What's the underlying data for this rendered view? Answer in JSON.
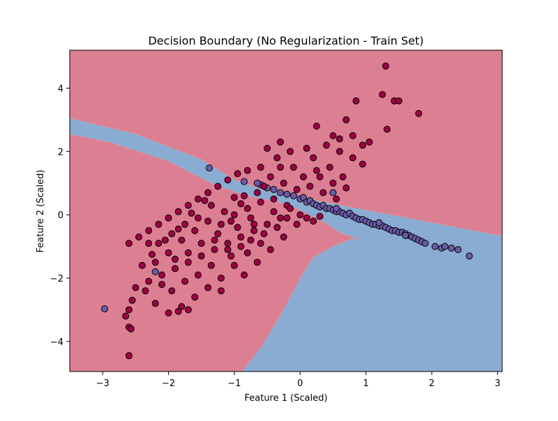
{
  "chart_data": {
    "type": "scatter",
    "title": "Decision Boundary (No Regularization - Train Set)",
    "xlabel": "Feature 1 (Scaled)",
    "ylabel": "Feature 2 (Scaled)",
    "xlim": [
      -3.5,
      3.07
    ],
    "ylim": [
      -4.95,
      5.2
    ],
    "xticks": [
      -3,
      -2,
      -1,
      0,
      1,
      2,
      3
    ],
    "yticks": [
      -4,
      -2,
      0,
      2,
      4
    ],
    "xtick_labels": [
      "−3",
      "−2",
      "−1",
      "0",
      "1",
      "2",
      "3"
    ],
    "ytick_labels": [
      "−4",
      "−2",
      "0",
      "2",
      "4"
    ],
    "grid": false,
    "legend": "none",
    "colors": {
      "region_class0": "#dc7f92",
      "region_class1": "#8aabd2",
      "point_class0": "#9e0142",
      "point_class1": "#6a5ba8",
      "point_edge": "#000000"
    },
    "boundary_class1_region": [
      [
        -3.5,
        3.05
      ],
      [
        -2.5,
        2.55
      ],
      [
        -1.5,
        1.75
      ],
      [
        -1.0,
        1.1
      ],
      [
        -0.5,
        0.75
      ],
      [
        0.0,
        0.55
      ],
      [
        0.5,
        0.35
      ],
      [
        1.0,
        0.15
      ],
      [
        1.5,
        -0.05
      ],
      [
        2.0,
        -0.25
      ],
      [
        2.5,
        -0.45
      ],
      [
        3.07,
        -0.67
      ],
      [
        3.07,
        -4.95
      ],
      [
        -0.88,
        -4.95
      ],
      [
        -0.6,
        -4.2
      ],
      [
        -0.3,
        -3.2
      ],
      [
        0.0,
        -2.0
      ],
      [
        0.2,
        -1.35
      ],
      [
        0.5,
        -1.0
      ],
      [
        0.8,
        -0.75
      ],
      [
        0.95,
        -0.8
      ],
      [
        0.6,
        -0.55
      ],
      [
        0.3,
        -0.15
      ],
      [
        0.0,
        0.15
      ],
      [
        -0.3,
        0.4
      ],
      [
        -0.8,
        0.6
      ],
      [
        -1.3,
        0.95
      ],
      [
        -2.0,
        1.7
      ],
      [
        -2.9,
        2.3
      ],
      [
        -3.5,
        2.55
      ]
    ],
    "series": [
      {
        "class": 1,
        "points": [
          [
            -2.97,
            -2.97
          ],
          [
            -1.38,
            1.48
          ],
          [
            -0.6,
            0.95
          ],
          [
            -0.5,
            0.85
          ],
          [
            -0.4,
            0.8
          ],
          [
            -0.3,
            0.7
          ],
          [
            -0.2,
            0.65
          ],
          [
            -0.1,
            0.6
          ],
          [
            0.0,
            0.5
          ],
          [
            0.05,
            0.55
          ],
          [
            0.1,
            0.4
          ],
          [
            0.15,
            0.45
          ],
          [
            0.2,
            0.35
          ],
          [
            0.25,
            0.3
          ],
          [
            0.3,
            0.25
          ],
          [
            0.35,
            0.3
          ],
          [
            0.4,
            0.2
          ],
          [
            0.45,
            0.2
          ],
          [
            0.5,
            0.15
          ],
          [
            0.55,
            0.1
          ],
          [
            0.6,
            0.1
          ],
          [
            0.65,
            0.05
          ],
          [
            0.7,
            0.0
          ],
          [
            0.75,
            0.05
          ],
          [
            0.8,
            -0.05
          ],
          [
            0.85,
            -0.1
          ],
          [
            0.9,
            -0.15
          ],
          [
            0.95,
            -0.15
          ],
          [
            1.0,
            -0.2
          ],
          [
            1.05,
            -0.25
          ],
          [
            1.1,
            -0.3
          ],
          [
            1.15,
            -0.3
          ],
          [
            1.2,
            -0.35
          ],
          [
            1.25,
            -0.35
          ],
          [
            1.3,
            -0.4
          ],
          [
            1.35,
            -0.45
          ],
          [
            1.4,
            -0.5
          ],
          [
            1.45,
            -0.5
          ],
          [
            1.5,
            -0.55
          ],
          [
            1.55,
            -0.55
          ],
          [
            1.6,
            -0.6
          ],
          [
            1.65,
            -0.65
          ],
          [
            1.7,
            -0.7
          ],
          [
            1.75,
            -0.75
          ],
          [
            1.8,
            -0.8
          ],
          [
            1.85,
            -0.85
          ],
          [
            1.9,
            -0.9
          ],
          [
            2.15,
            -1.05
          ],
          [
            2.2,
            -1.0
          ],
          [
            2.3,
            -1.05
          ],
          [
            2.4,
            -1.1
          ],
          [
            2.57,
            -1.3
          ],
          [
            0.5,
            0.7
          ],
          [
            -0.85,
            1.05
          ],
          [
            -2.2,
            -1.8
          ],
          [
            -0.65,
            1.0
          ],
          [
            0.55,
            0.2
          ],
          [
            1.2,
            -0.25
          ],
          [
            1.6,
            -0.65
          ],
          [
            2.05,
            -1.0
          ]
        ]
      },
      {
        "class": 0,
        "points": [
          [
            1.3,
            4.7
          ],
          [
            0.85,
            3.6
          ],
          [
            1.25,
            3.8
          ],
          [
            1.43,
            3.6
          ],
          [
            1.5,
            3.6
          ],
          [
            1.8,
            3.2
          ],
          [
            1.32,
            2.7
          ],
          [
            0.7,
            3.0
          ],
          [
            0.5,
            2.5
          ],
          [
            0.8,
            2.5
          ],
          [
            0.25,
            2.8
          ],
          [
            0.6,
            2.4
          ],
          [
            0.95,
            2.2
          ],
          [
            0.4,
            2.2
          ],
          [
            0.1,
            2.1
          ],
          [
            -0.15,
            2.0
          ],
          [
            -0.3,
            2.3
          ],
          [
            -0.5,
            2.1
          ],
          [
            -0.35,
            1.8
          ],
          [
            -0.1,
            1.5
          ],
          [
            0.3,
            1.2
          ],
          [
            0.5,
            1.0
          ],
          [
            0.7,
            0.85
          ],
          [
            0.8,
            1.8
          ],
          [
            0.95,
            1.6
          ],
          [
            -0.6,
            1.5
          ],
          [
            -0.8,
            1.4
          ],
          [
            -0.95,
            1.3
          ],
          [
            -1.1,
            1.1
          ],
          [
            -1.25,
            0.9
          ],
          [
            -1.4,
            0.7
          ],
          [
            -1.55,
            0.5
          ],
          [
            -1.7,
            0.3
          ],
          [
            -1.85,
            0.1
          ],
          [
            -2.0,
            -0.1
          ],
          [
            -2.15,
            -0.3
          ],
          [
            -2.3,
            -0.5
          ],
          [
            -2.45,
            -0.7
          ],
          [
            -2.6,
            -0.9
          ],
          [
            -1.2,
            -0.3
          ],
          [
            -1.0,
            0.0
          ],
          [
            -0.8,
            0.2
          ],
          [
            -0.6,
            0.4
          ],
          [
            -0.4,
            0.5
          ],
          [
            -0.2,
            0.3
          ],
          [
            0.0,
            0.0
          ],
          [
            0.2,
            -0.2
          ],
          [
            -0.9,
            -0.7
          ],
          [
            -1.1,
            -0.9
          ],
          [
            -1.3,
            -1.1
          ],
          [
            -1.5,
            -1.3
          ],
          [
            -1.7,
            -1.5
          ],
          [
            -1.9,
            -1.7
          ],
          [
            -2.1,
            -1.9
          ],
          [
            -2.3,
            -2.1
          ],
          [
            -2.5,
            -2.3
          ],
          [
            -0.7,
            -0.5
          ],
          [
            -0.5,
            -0.3
          ],
          [
            -0.3,
            -0.1
          ],
          [
            -1.6,
            -0.5
          ],
          [
            -1.4,
            -0.2
          ],
          [
            -1.8,
            -0.8
          ],
          [
            -2.0,
            -1.2
          ],
          [
            -2.2,
            -1.5
          ],
          [
            -1.0,
            -1.6
          ],
          [
            -0.8,
            -1.2
          ],
          [
            -0.6,
            -0.9
          ],
          [
            -1.2,
            -2.0
          ],
          [
            -1.4,
            -2.3
          ],
          [
            -1.6,
            -2.6
          ],
          [
            -1.8,
            -2.9
          ],
          [
            -2.0,
            -3.1
          ],
          [
            -2.2,
            -2.8
          ],
          [
            -2.55,
            -2.7
          ],
          [
            -2.6,
            -3.0
          ],
          [
            -2.65,
            -3.2
          ],
          [
            -2.6,
            -3.55
          ],
          [
            -2.57,
            -3.6
          ],
          [
            -2.6,
            -4.45
          ],
          [
            -2.35,
            -2.4
          ],
          [
            -2.1,
            -2.2
          ],
          [
            -1.85,
            -3.05
          ],
          [
            -1.7,
            -3.0
          ],
          [
            -1.2,
            -2.4
          ],
          [
            -1.05,
            -1.3
          ],
          [
            -0.9,
            -1.0
          ],
          [
            -0.75,
            -0.1
          ],
          [
            -0.55,
            0.9
          ],
          [
            -0.45,
            1.2
          ],
          [
            -0.25,
            1.0
          ],
          [
            -0.05,
            0.8
          ],
          [
            0.15,
            0.9
          ],
          [
            0.35,
            0.7
          ],
          [
            0.55,
            0.5
          ],
          [
            0.65,
            1.2
          ],
          [
            0.45,
            1.5
          ],
          [
            0.25,
            1.4
          ],
          [
            0.05,
            1.2
          ],
          [
            -0.15,
            0.2
          ],
          [
            -0.35,
            -0.4
          ],
          [
            -0.55,
            -0.6
          ],
          [
            -0.75,
            -0.8
          ],
          [
            -0.95,
            -0.4
          ],
          [
            -1.15,
            0.1
          ],
          [
            -1.35,
            0.3
          ],
          [
            -1.55,
            -0.1
          ],
          [
            -1.75,
            -0.3
          ],
          [
            -1.95,
            -0.6
          ],
          [
            -2.15,
            -0.9
          ],
          [
            -1.35,
            -1.6
          ],
          [
            -1.55,
            -1.9
          ],
          [
            -1.75,
            -2.1
          ],
          [
            -1.95,
            -2.4
          ],
          [
            -0.85,
            -1.9
          ],
          [
            -0.65,
            -1.5
          ],
          [
            -0.45,
            -1.1
          ],
          [
            -0.25,
            -0.7
          ],
          [
            -0.05,
            -0.3
          ],
          [
            0.1,
            -0.1
          ],
          [
            -1.25,
            -0.6
          ],
          [
            -1.05,
            -0.2
          ],
          [
            -0.85,
            0.6
          ],
          [
            -0.65,
            0.7
          ],
          [
            -1.45,
            0.45
          ],
          [
            -1.65,
            0.05
          ],
          [
            -1.85,
            -0.45
          ],
          [
            -2.05,
            -0.8
          ],
          [
            -2.25,
            -1.25
          ],
          [
            -2.4,
            -1.6
          ],
          [
            -1.0,
            0.55
          ],
          [
            -0.3,
            1.5
          ],
          [
            0.2,
            1.8
          ],
          [
            0.6,
            2.0
          ],
          [
            1.05,
            2.3
          ],
          [
            -0.7,
            -0.3
          ],
          [
            -0.9,
            0.35
          ],
          [
            -1.1,
            -1.1
          ],
          [
            -1.3,
            -0.8
          ],
          [
            -0.4,
            0.1
          ],
          [
            -0.2,
            -0.1
          ],
          [
            0.3,
            -0.05
          ],
          [
            -1.5,
            -0.9
          ],
          [
            -1.7,
            -1.2
          ],
          [
            -1.9,
            -1.4
          ],
          [
            -2.3,
            -0.9
          ]
        ]
      }
    ]
  }
}
